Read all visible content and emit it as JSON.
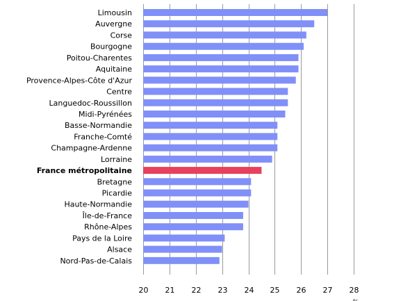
{
  "chart_data": {
    "type": "bar",
    "orientation": "horizontal",
    "categories": [
      "Limousin",
      "Auvergne",
      "Corse",
      "Bourgogne",
      "Poitou-Charentes",
      "Aquitaine",
      "Provence-Alpes-Côte d'Azur",
      "Centre",
      "Languedoc-Roussillon",
      "Midi-Pyrénées",
      "Basse-Normandie",
      "Franche-Comté",
      "Champagne-Ardenne",
      "Lorraine",
      "France métropolitaine",
      "Bretagne",
      "Picardie",
      "Haute-Normandie",
      "Île-de-France",
      "Rhône-Alpes",
      "Pays de la Loire",
      "Alsace",
      "Nord-Pas-de-Calais"
    ],
    "values": [
      27.0,
      26.5,
      26.2,
      26.1,
      25.9,
      25.9,
      25.8,
      25.5,
      25.5,
      25.4,
      25.1,
      25.1,
      25.1,
      24.9,
      24.5,
      24.1,
      24.1,
      24.0,
      23.8,
      23.8,
      23.1,
      23.0,
      22.9
    ],
    "highlight_category": "France métropolitaine",
    "xlim": [
      20,
      28
    ],
    "x_ticks": [
      20,
      21,
      22,
      23,
      24,
      25,
      26,
      27,
      28
    ],
    "x_unit": "%",
    "grid": true,
    "colors": {
      "bar": "#8090f8",
      "highlight": "#e8405f",
      "grid": "#999999"
    }
  }
}
